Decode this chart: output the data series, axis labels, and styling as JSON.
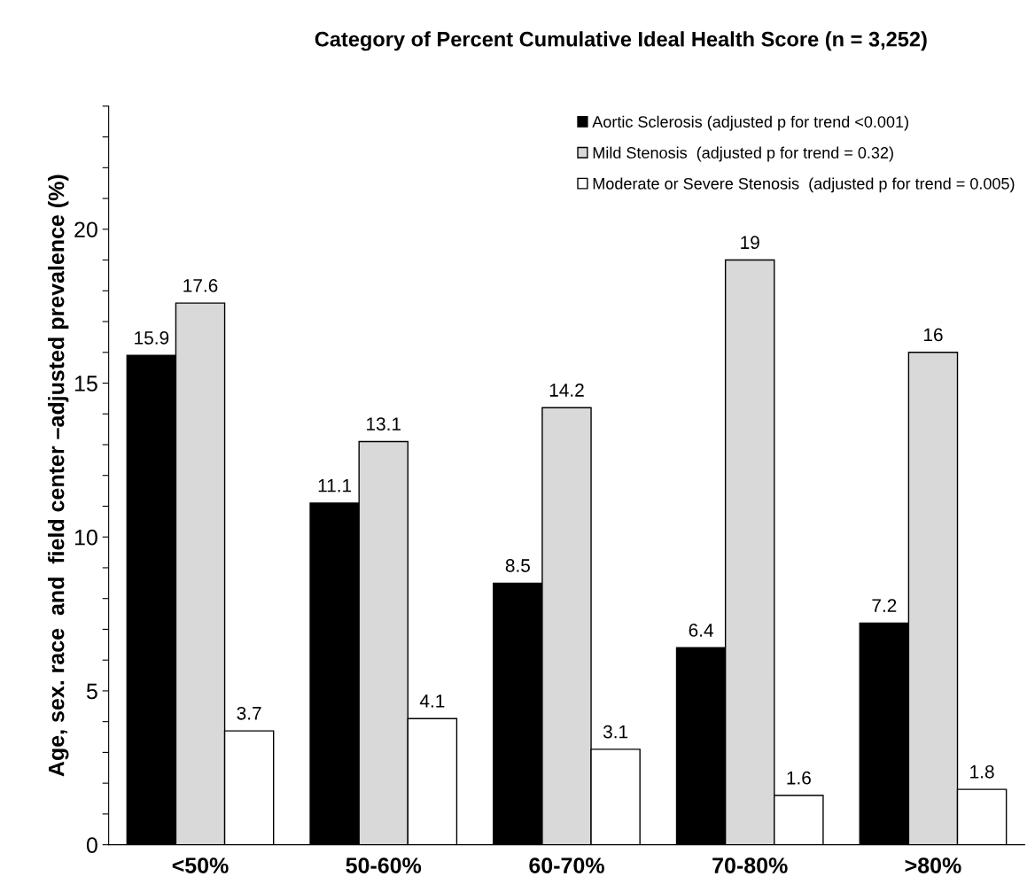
{
  "chart_data": {
    "type": "bar",
    "title": "Category of Percent Cumulative Ideal Health Score (n = 3,252)",
    "ylabel": "Age, sex. race  and  field center –adjusted prevalence (%)",
    "categories": [
      "<50%",
      "50-60%",
      "60-70%",
      "70-80%",
      ">80%"
    ],
    "series": [
      {
        "name": "Aortic Sclerosis (adjusted p for trend <0.001)",
        "color": "#000000",
        "values": [
          15.9,
          11.1,
          8.5,
          6.4,
          7.2
        ]
      },
      {
        "name": "Mild Stenosis  (adjusted p for trend = 0.32)",
        "color": "#d9d9d9",
        "values": [
          17.6,
          13.1,
          14.2,
          19,
          16
        ]
      },
      {
        "name": "Moderate or Severe Stenosis  (adjusted p for trend = 0.005)",
        "color": "#ffffff",
        "values": [
          3.7,
          4.1,
          3.1,
          1.6,
          1.8
        ]
      }
    ],
    "ylim": [
      0,
      24
    ],
    "yticks": [
      0,
      {
        "value": 1,
        "label": null
      },
      {
        "value": 2,
        "label": null
      },
      {
        "value": 3,
        "label": null
      },
      {
        "value": 4,
        "label": null
      },
      5,
      {
        "value": 6,
        "label": null
      },
      {
        "value": 7,
        "label": null
      },
      {
        "value": 8,
        "label": null
      },
      {
        "value": 9,
        "label": null
      },
      10,
      {
        "value": 11,
        "label": null
      },
      {
        "value": 12,
        "label": null
      },
      {
        "value": 13,
        "label": null
      },
      {
        "value": 14,
        "label": null
      },
      15,
      {
        "value": 16,
        "label": null
      },
      {
        "value": 17,
        "label": null
      },
      {
        "value": 18,
        "label": null
      },
      {
        "value": 19,
        "label": null
      },
      20,
      {
        "value": 21,
        "label": null
      },
      {
        "value": 22,
        "label": null
      },
      {
        "value": 23,
        "label": null
      },
      {
        "value": 24,
        "label": null
      }
    ],
    "data_labels": true,
    "grid": false,
    "legend": "top right"
  }
}
